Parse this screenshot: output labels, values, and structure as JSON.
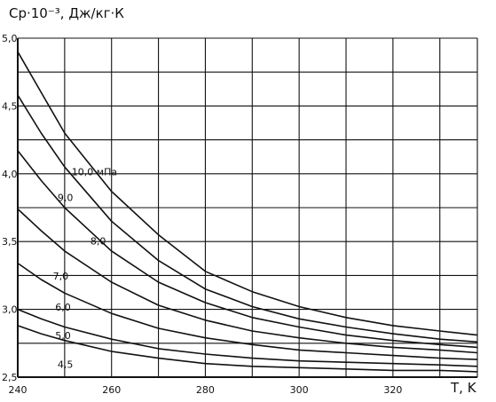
{
  "chart_data": {
    "type": "line",
    "title": "",
    "ylabel": "Cp·10⁻³, Дж/кг·К",
    "xlabel": "T, K",
    "xlim": [
      240,
      338
    ],
    "ylim": [
      2.5,
      5.0
    ],
    "x_ticks": [
      "240",
      "260",
      "280",
      "300",
      "320"
    ],
    "y_ticks": [
      "2,5",
      "3,0",
      "3,5",
      "4,0",
      "4,5",
      "5,0"
    ],
    "grid": true,
    "series": [
      {
        "name": "10,0 мПа",
        "x": [
          240,
          245,
          250,
          260,
          270,
          280,
          290,
          300,
          310,
          320,
          330,
          338
        ],
        "y": [
          4.9,
          4.6,
          4.3,
          3.87,
          3.55,
          3.28,
          3.13,
          3.02,
          2.94,
          2.88,
          2.84,
          2.81
        ]
      },
      {
        "name": "9,0",
        "x": [
          240,
          245,
          250,
          260,
          270,
          280,
          290,
          300,
          310,
          320,
          330,
          338
        ],
        "y": [
          4.58,
          4.3,
          4.05,
          3.65,
          3.36,
          3.15,
          3.02,
          2.93,
          2.87,
          2.82,
          2.78,
          2.76
        ]
      },
      {
        "name": "8,0",
        "x": [
          240,
          245,
          250,
          260,
          270,
          280,
          290,
          300,
          310,
          320,
          330,
          338
        ],
        "y": [
          4.17,
          3.95,
          3.75,
          3.43,
          3.2,
          3.05,
          2.94,
          2.87,
          2.81,
          2.77,
          2.74,
          2.72
        ]
      },
      {
        "name": "7,0",
        "x": [
          240,
          245,
          250,
          260,
          270,
          280,
          290,
          300,
          310,
          320,
          330,
          338
        ],
        "y": [
          3.74,
          3.58,
          3.43,
          3.2,
          3.03,
          2.92,
          2.84,
          2.79,
          2.75,
          2.72,
          2.7,
          2.68
        ]
      },
      {
        "name": "6,0",
        "x": [
          240,
          245,
          250,
          260,
          270,
          280,
          290,
          300,
          310,
          320,
          330,
          338
        ],
        "y": [
          3.34,
          3.22,
          3.12,
          2.97,
          2.86,
          2.79,
          2.74,
          2.7,
          2.68,
          2.66,
          2.64,
          2.63
        ]
      },
      {
        "name": "5,0",
        "x": [
          240,
          245,
          250,
          260,
          270,
          280,
          290,
          300,
          310,
          320,
          330,
          338
        ],
        "y": [
          3.0,
          2.93,
          2.87,
          2.78,
          2.71,
          2.67,
          2.64,
          2.62,
          2.61,
          2.6,
          2.59,
          2.58
        ]
      },
      {
        "name": "4,5",
        "x": [
          240,
          245,
          250,
          260,
          270,
          280,
          290,
          300,
          310,
          320,
          330,
          338
        ],
        "y": [
          2.88,
          2.82,
          2.77,
          2.69,
          2.64,
          2.6,
          2.58,
          2.57,
          2.56,
          2.55,
          2.55,
          2.54
        ]
      }
    ]
  }
}
